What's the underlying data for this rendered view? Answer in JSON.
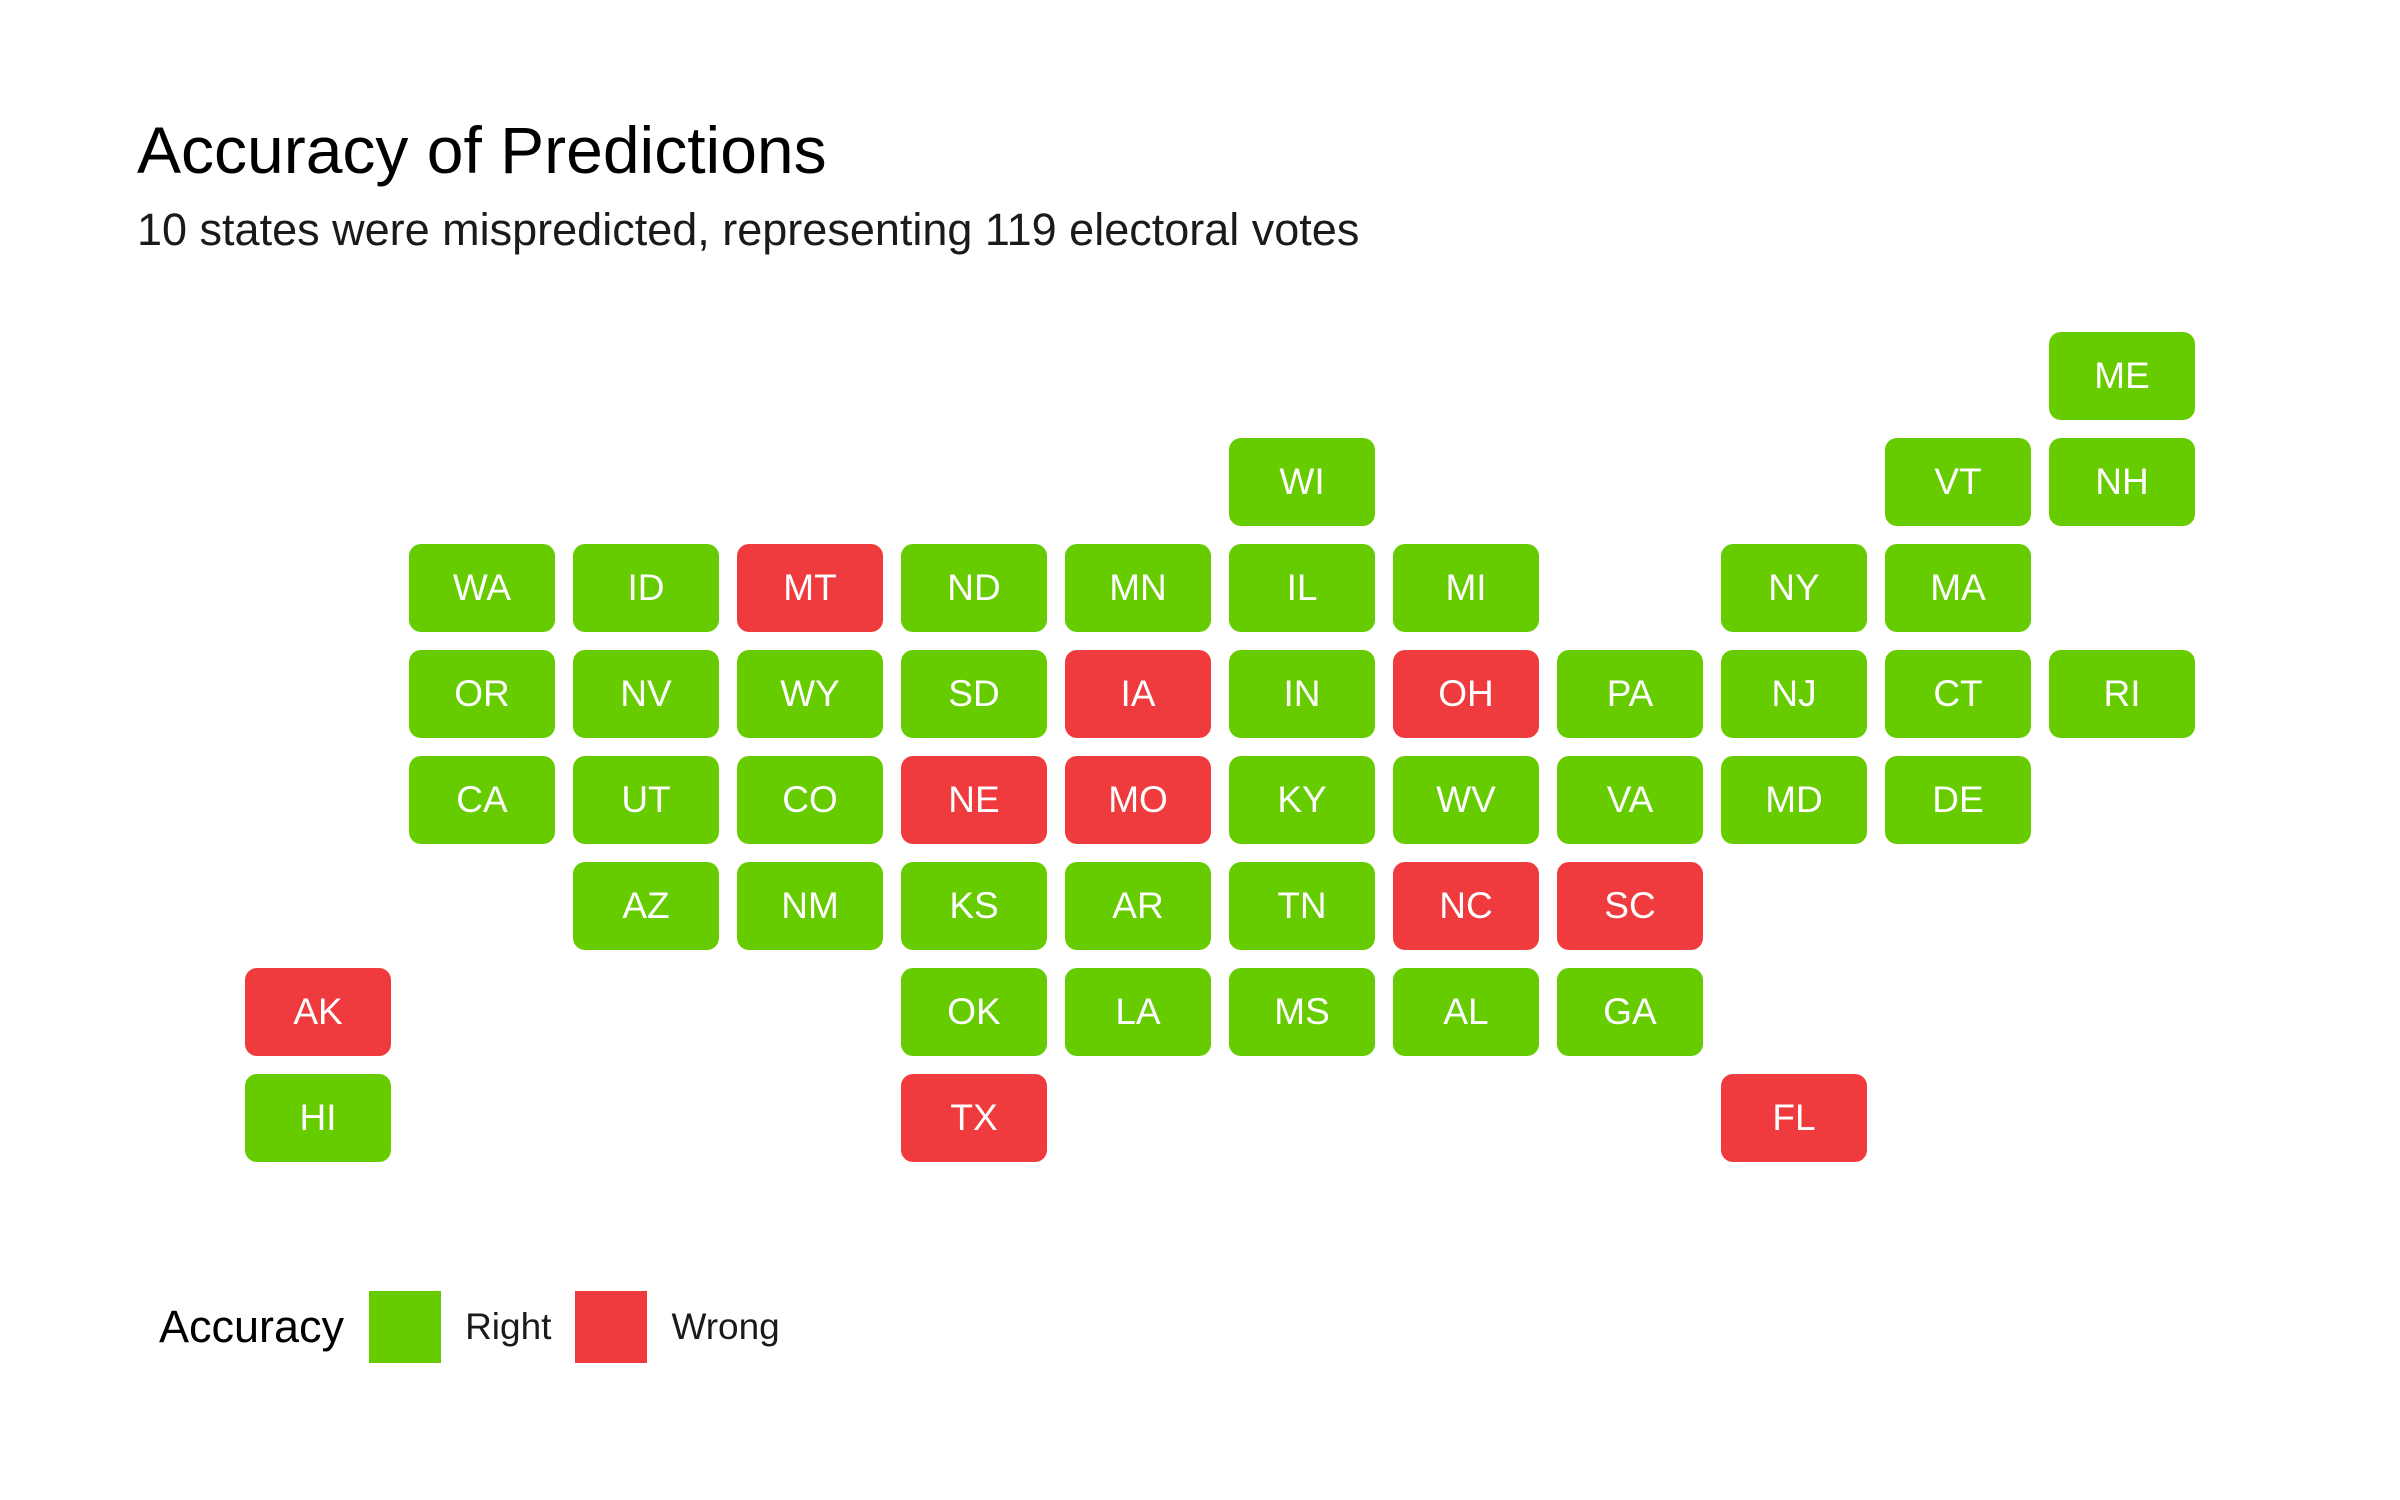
{
  "colors": {
    "right": "#66cc00",
    "wrong": "#ef3b3e",
    "background": "#ffffff"
  },
  "chart_data": {
    "type": "tile-map",
    "title": "Accuracy of Predictions",
    "subtitle": "10 states were mispredicted, representing 119 electoral votes",
    "legend": {
      "title": "Accuracy",
      "placement": "bottom-left",
      "items": [
        {
          "key": "right",
          "label": "Right"
        },
        {
          "key": "wrong",
          "label": "Wrong"
        }
      ]
    },
    "grid_columns": 12,
    "grid_rows": 8,
    "tiles": [
      {
        "state": "ME",
        "col": 12,
        "row": 1,
        "accuracy": "right"
      },
      {
        "state": "WI",
        "col": 7,
        "row": 2,
        "accuracy": "right"
      },
      {
        "state": "VT",
        "col": 11,
        "row": 2,
        "accuracy": "right"
      },
      {
        "state": "NH",
        "col": 12,
        "row": 2,
        "accuracy": "right"
      },
      {
        "state": "WA",
        "col": 2,
        "row": 3,
        "accuracy": "right"
      },
      {
        "state": "ID",
        "col": 3,
        "row": 3,
        "accuracy": "right"
      },
      {
        "state": "MT",
        "col": 4,
        "row": 3,
        "accuracy": "wrong"
      },
      {
        "state": "ND",
        "col": 5,
        "row": 3,
        "accuracy": "right"
      },
      {
        "state": "MN",
        "col": 6,
        "row": 3,
        "accuracy": "right"
      },
      {
        "state": "IL",
        "col": 7,
        "row": 3,
        "accuracy": "right"
      },
      {
        "state": "MI",
        "col": 8,
        "row": 3,
        "accuracy": "right"
      },
      {
        "state": "NY",
        "col": 10,
        "row": 3,
        "accuracy": "right"
      },
      {
        "state": "MA",
        "col": 11,
        "row": 3,
        "accuracy": "right"
      },
      {
        "state": "OR",
        "col": 2,
        "row": 4,
        "accuracy": "right"
      },
      {
        "state": "NV",
        "col": 3,
        "row": 4,
        "accuracy": "right"
      },
      {
        "state": "WY",
        "col": 4,
        "row": 4,
        "accuracy": "right"
      },
      {
        "state": "SD",
        "col": 5,
        "row": 4,
        "accuracy": "right"
      },
      {
        "state": "IA",
        "col": 6,
        "row": 4,
        "accuracy": "wrong"
      },
      {
        "state": "IN",
        "col": 7,
        "row": 4,
        "accuracy": "right"
      },
      {
        "state": "OH",
        "col": 8,
        "row": 4,
        "accuracy": "wrong"
      },
      {
        "state": "PA",
        "col": 9,
        "row": 4,
        "accuracy": "right"
      },
      {
        "state": "NJ",
        "col": 10,
        "row": 4,
        "accuracy": "right"
      },
      {
        "state": "CT",
        "col": 11,
        "row": 4,
        "accuracy": "right"
      },
      {
        "state": "RI",
        "col": 12,
        "row": 4,
        "accuracy": "right"
      },
      {
        "state": "CA",
        "col": 2,
        "row": 5,
        "accuracy": "right"
      },
      {
        "state": "UT",
        "col": 3,
        "row": 5,
        "accuracy": "right"
      },
      {
        "state": "CO",
        "col": 4,
        "row": 5,
        "accuracy": "right"
      },
      {
        "state": "NE",
        "col": 5,
        "row": 5,
        "accuracy": "wrong"
      },
      {
        "state": "MO",
        "col": 6,
        "row": 5,
        "accuracy": "wrong"
      },
      {
        "state": "KY",
        "col": 7,
        "row": 5,
        "accuracy": "right"
      },
      {
        "state": "WV",
        "col": 8,
        "row": 5,
        "accuracy": "right"
      },
      {
        "state": "VA",
        "col": 9,
        "row": 5,
        "accuracy": "right"
      },
      {
        "state": "MD",
        "col": 10,
        "row": 5,
        "accuracy": "right"
      },
      {
        "state": "DE",
        "col": 11,
        "row": 5,
        "accuracy": "right"
      },
      {
        "state": "AZ",
        "col": 3,
        "row": 6,
        "accuracy": "right"
      },
      {
        "state": "NM",
        "col": 4,
        "row": 6,
        "accuracy": "right"
      },
      {
        "state": "KS",
        "col": 5,
        "row": 6,
        "accuracy": "right"
      },
      {
        "state": "AR",
        "col": 6,
        "row": 6,
        "accuracy": "right"
      },
      {
        "state": "TN",
        "col": 7,
        "row": 6,
        "accuracy": "right"
      },
      {
        "state": "NC",
        "col": 8,
        "row": 6,
        "accuracy": "wrong"
      },
      {
        "state": "SC",
        "col": 9,
        "row": 6,
        "accuracy": "wrong"
      },
      {
        "state": "AK",
        "col": 1,
        "row": 7,
        "accuracy": "wrong"
      },
      {
        "state": "OK",
        "col": 5,
        "row": 7,
        "accuracy": "right"
      },
      {
        "state": "LA",
        "col": 6,
        "row": 7,
        "accuracy": "right"
      },
      {
        "state": "MS",
        "col": 7,
        "row": 7,
        "accuracy": "right"
      },
      {
        "state": "AL",
        "col": 8,
        "row": 7,
        "accuracy": "right"
      },
      {
        "state": "GA",
        "col": 9,
        "row": 7,
        "accuracy": "right"
      },
      {
        "state": "HI",
        "col": 1,
        "row": 8,
        "accuracy": "right"
      },
      {
        "state": "TX",
        "col": 5,
        "row": 8,
        "accuracy": "wrong"
      },
      {
        "state": "FL",
        "col": 10,
        "row": 8,
        "accuracy": "wrong"
      }
    ]
  }
}
